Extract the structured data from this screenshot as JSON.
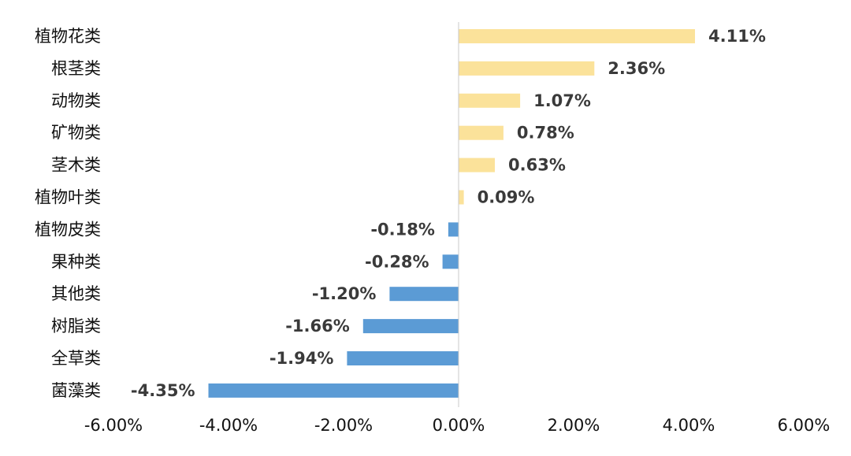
{
  "chart_data": {
    "type": "bar",
    "orientation": "horizontal",
    "title": "",
    "xlabel": "",
    "ylabel": "",
    "xlim": [
      -6,
      6
    ],
    "x_ticks": [
      -6,
      -4,
      -2,
      0,
      2,
      4,
      6
    ],
    "x_tick_labels": [
      "-6.00%",
      "-4.00%",
      "-2.00%",
      "0.00%",
      "2.00%",
      "4.00%",
      "6.00%"
    ],
    "categories": [
      "植物花类",
      "根茎类",
      "动物类",
      "矿物类",
      "茎木类",
      "植物叶类",
      "植物皮类",
      "果种类",
      "其他类",
      "树脂类",
      "全草类",
      "菌藻类"
    ],
    "values": [
      4.11,
      2.36,
      1.07,
      0.78,
      0.63,
      0.09,
      -0.18,
      -0.28,
      -1.2,
      -1.66,
      -1.94,
      -4.35
    ],
    "value_labels": [
      "4.11%",
      "2.36%",
      "1.07%",
      "0.78%",
      "0.63%",
      "0.09%",
      "-0.18%",
      "-0.28%",
      "-1.20%",
      "-1.66%",
      "-1.94%",
      "-4.35%"
    ],
    "grid": false,
    "legend": "none",
    "colors": {
      "positive": "#fbe29a",
      "negative": "#5b9bd5",
      "axis": "#c8c8c8"
    }
  }
}
